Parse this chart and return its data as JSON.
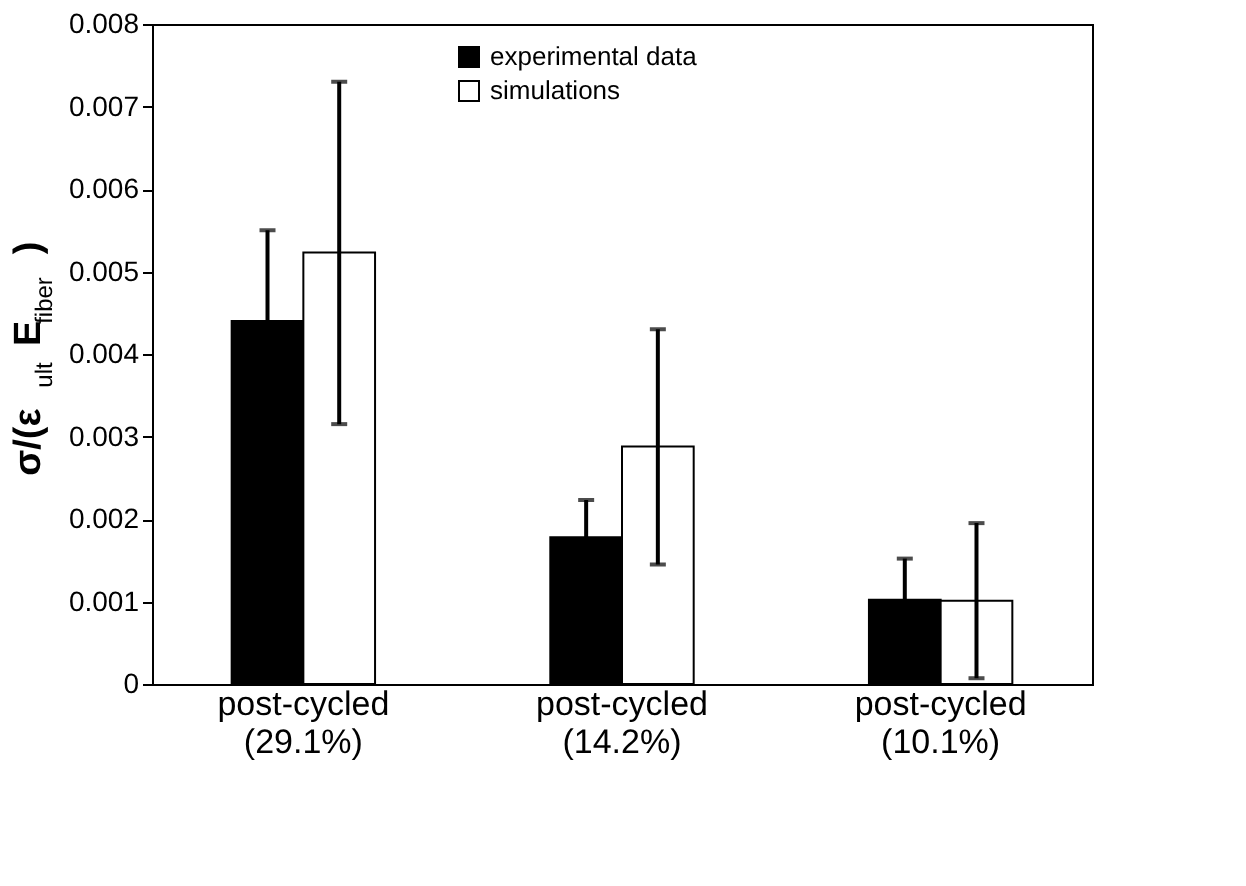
{
  "chart_data": {
    "type": "bar",
    "categories": [
      "post-cycled\n(29.1%)",
      "post-cycled\n(14.2%)",
      "post-cycled\n(10.1%)"
    ],
    "ylabel": "σ/(ε$_{ult}$E$_{fiber}$)",
    "series": [
      {
        "name": "experimental data",
        "color": "#000000",
        "values": [
          0.0044,
          0.00178,
          0.00102
        ],
        "errors": [
          0.0011,
          0.00045,
          0.0005
        ]
      },
      {
        "name": "simulations",
        "color": "#ffffff",
        "values": [
          0.00523,
          0.00288,
          0.00101
        ],
        "errors": [
          [
            0.00315,
            0.0073
          ],
          [
            0.00145,
            0.0043
          ],
          [
            7e-05,
            0.00195
          ]
        ]
      }
    ],
    "ylim": [
      0,
      0.008
    ],
    "yticks": [
      0,
      0.001,
      0.002,
      0.003,
      0.004,
      0.005,
      0.006,
      0.007,
      0.008
    ],
    "grid": false,
    "legend": "top"
  }
}
